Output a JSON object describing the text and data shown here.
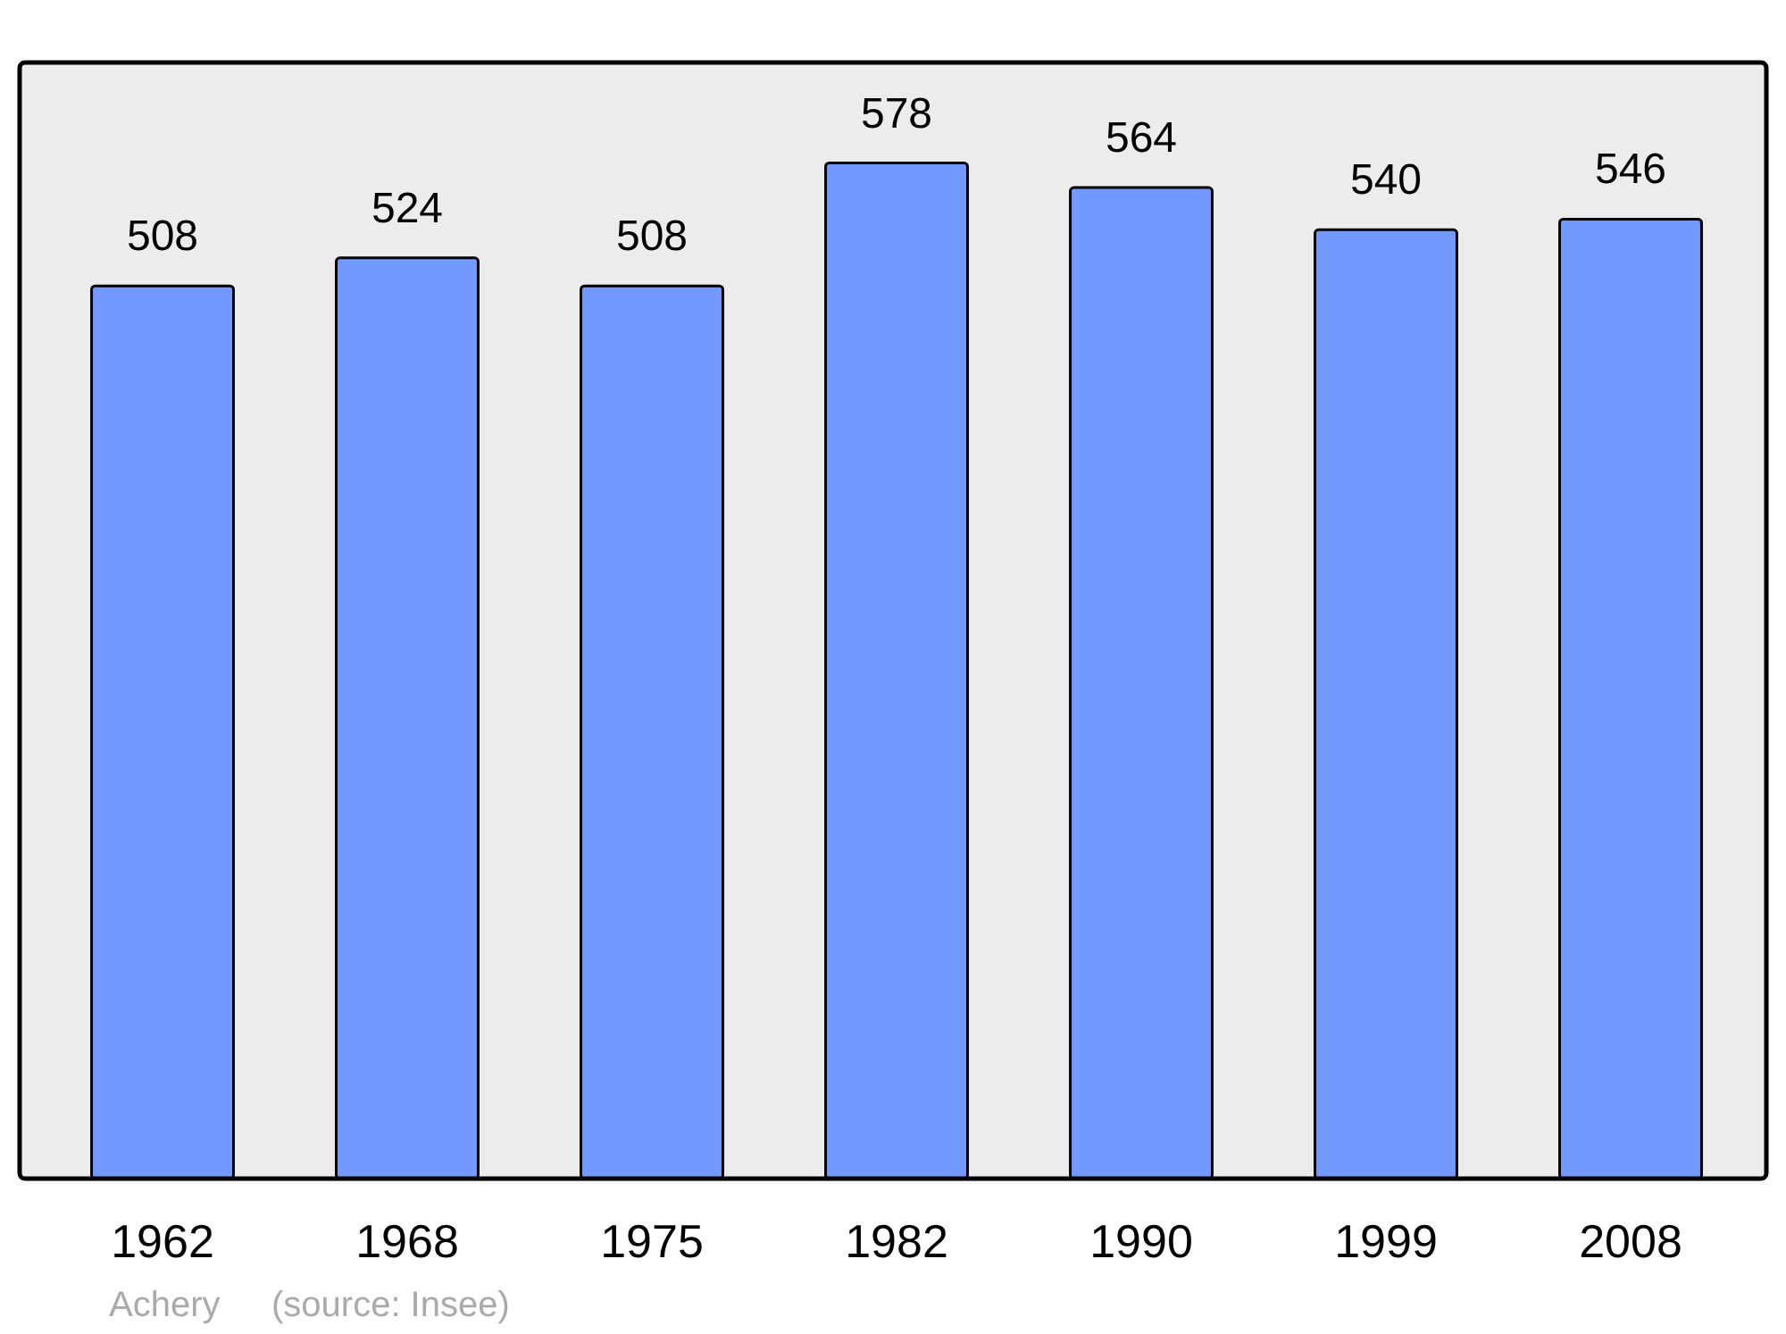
{
  "chart_data": {
    "type": "bar",
    "categories": [
      "1962",
      "1968",
      "1975",
      "1982",
      "1990",
      "1999",
      "2008"
    ],
    "values": [
      508,
      524,
      508,
      578,
      564,
      540,
      546
    ],
    "color": "#7399ff",
    "data_labels": true,
    "tick_labels": "x",
    "annotations": [
      "Achery",
      "(source: Insee)"
    ]
  }
}
